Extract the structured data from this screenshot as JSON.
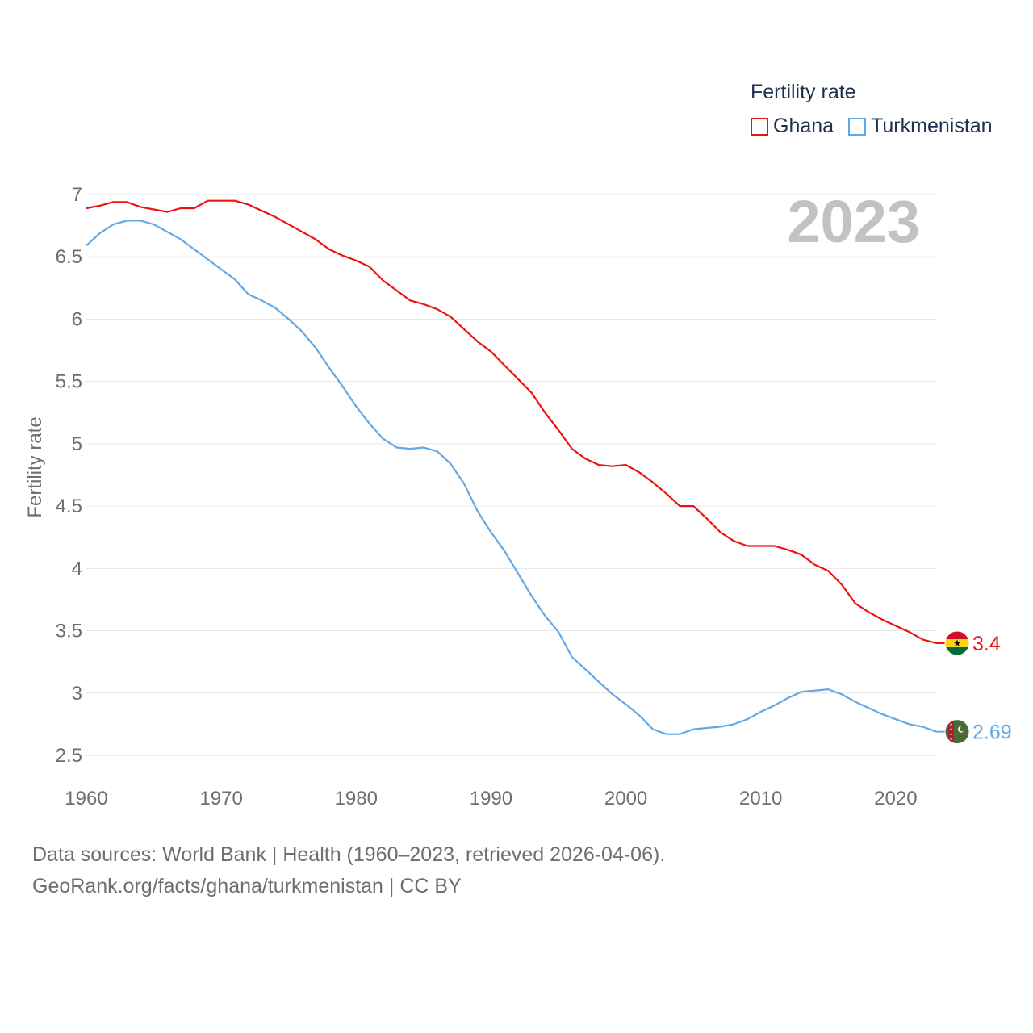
{
  "legend": {
    "title": "Fertility rate",
    "items": [
      {
        "label": "Ghana",
        "color": "#ee1111"
      },
      {
        "label": "Turkmenistan",
        "color": "#63a8e6"
      }
    ]
  },
  "footer": {
    "line1": "Data sources: World Bank | Health (1960–2023, retrieved 2026-04-06).",
    "line2": "GeoRank.org/facts/ghana/turkmenistan | CC BY"
  },
  "chart_data": {
    "type": "line",
    "year_watermark": "2023",
    "ylabel": "Fertility rate",
    "xlabel": "",
    "xlim": [
      1960,
      2023
    ],
    "ylim": [
      2.5,
      7
    ],
    "x_ticks": [
      "1960",
      "1970",
      "1980",
      "1990",
      "2000",
      "2010",
      "2020"
    ],
    "y_ticks": [
      "2.5",
      "3",
      "3.5",
      "4",
      "4.5",
      "5",
      "5.5",
      "6",
      "6.5",
      "7"
    ],
    "x": [
      1960,
      1961,
      1962,
      1963,
      1964,
      1965,
      1966,
      1967,
      1968,
      1969,
      1970,
      1971,
      1972,
      1973,
      1974,
      1975,
      1976,
      1977,
      1978,
      1979,
      1980,
      1981,
      1982,
      1983,
      1984,
      1985,
      1986,
      1987,
      1988,
      1989,
      1990,
      1991,
      1992,
      1993,
      1994,
      1995,
      1996,
      1997,
      1998,
      1999,
      2000,
      2001,
      2002,
      2003,
      2004,
      2005,
      2006,
      2007,
      2008,
      2009,
      2010,
      2011,
      2012,
      2013,
      2014,
      2015,
      2016,
      2017,
      2018,
      2019,
      2020,
      2021,
      2022,
      2023
    ],
    "series": [
      {
        "name": "Ghana",
        "color": "#ee1111",
        "end_label": "3.4",
        "values": [
          6.89,
          6.91,
          6.94,
          6.94,
          6.9,
          6.88,
          6.86,
          6.89,
          6.89,
          6.95,
          6.95,
          6.95,
          6.92,
          6.87,
          6.82,
          6.76,
          6.7,
          6.64,
          6.56,
          6.51,
          6.47,
          6.42,
          6.31,
          6.23,
          6.15,
          6.12,
          6.08,
          6.02,
          5.92,
          5.82,
          5.74,
          5.63,
          5.52,
          5.41,
          5.25,
          5.11,
          4.96,
          4.88,
          4.83,
          4.82,
          4.83,
          4.77,
          4.69,
          4.6,
          4.5,
          4.5,
          4.4,
          4.29,
          4.22,
          4.18,
          4.18,
          4.18,
          4.15,
          4.11,
          4.03,
          3.98,
          3.87,
          3.72,
          3.65,
          3.59,
          3.54,
          3.49,
          3.43,
          3.4
        ]
      },
      {
        "name": "Turkmenistan",
        "color": "#63a8e6",
        "end_label": "2.69",
        "values": [
          6.59,
          6.69,
          6.76,
          6.79,
          6.79,
          6.76,
          6.7,
          6.64,
          6.56,
          6.48,
          6.4,
          6.32,
          6.2,
          6.15,
          6.09,
          6.0,
          5.9,
          5.77,
          5.61,
          5.46,
          5.3,
          5.16,
          5.04,
          4.97,
          4.96,
          4.97,
          4.94,
          4.84,
          4.68,
          4.46,
          4.29,
          4.14,
          3.96,
          3.78,
          3.62,
          3.49,
          3.29,
          3.19,
          3.09,
          2.99,
          2.91,
          2.82,
          2.71,
          2.67,
          2.67,
          2.71,
          2.72,
          2.73,
          2.75,
          2.79,
          2.85,
          2.9,
          2.96,
          3.01,
          3.02,
          3.03,
          2.99,
          2.93,
          2.88,
          2.83,
          2.79,
          2.75,
          2.73,
          2.69
        ]
      }
    ]
  }
}
